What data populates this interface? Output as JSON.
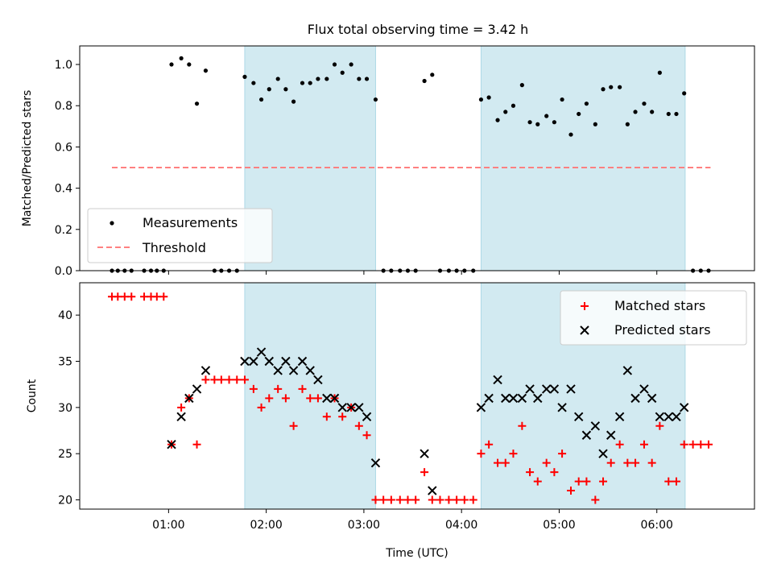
{
  "title": "Flux total observing time = 3.42 h",
  "colors": {
    "shade": "#add8e6",
    "measurement": "#000000",
    "threshold": "#ff8080",
    "matched": "#ff0000",
    "predicted": "#000000"
  },
  "chart_data": [
    {
      "type": "scatter",
      "ylabel": "Matched/Predicted stars",
      "x_unit": "hours UTC",
      "xlim": [
        0.09,
        7.0
      ],
      "ylim": [
        0.0,
        1.09
      ],
      "yticks": [
        "0.0",
        "0.2",
        "0.4",
        "0.6",
        "0.8",
        "1.0"
      ],
      "shaded_intervals": [
        [
          1.78,
          3.12
        ],
        [
          4.2,
          6.29
        ]
      ],
      "legend": {
        "position": "lower left",
        "entries": [
          "Measurements",
          "Threshold"
        ]
      },
      "threshold": {
        "name": "Threshold",
        "y": 0.5,
        "x_range": [
          0.42,
          6.55
        ]
      },
      "series": [
        {
          "name": "Measurements",
          "points": [
            [
              0.42,
              0
            ],
            [
              0.48,
              0
            ],
            [
              0.55,
              0
            ],
            [
              0.62,
              0
            ],
            [
              0.75,
              0
            ],
            [
              0.82,
              0
            ],
            [
              0.88,
              0
            ],
            [
              0.95,
              0
            ],
            [
              1.03,
              1.0
            ],
            [
              1.13,
              1.03
            ],
            [
              1.21,
              1.0
            ],
            [
              1.29,
              0.81
            ],
            [
              1.38,
              0.97
            ],
            [
              1.47,
              0
            ],
            [
              1.54,
              0
            ],
            [
              1.62,
              0
            ],
            [
              1.7,
              0
            ],
            [
              1.78,
              0.94
            ],
            [
              1.87,
              0.91
            ],
            [
              1.95,
              0.83
            ],
            [
              2.03,
              0.88
            ],
            [
              2.12,
              0.93
            ],
            [
              2.2,
              0.88
            ],
            [
              2.28,
              0.82
            ],
            [
              2.37,
              0.91
            ],
            [
              2.45,
              0.91
            ],
            [
              2.53,
              0.93
            ],
            [
              2.62,
              0.93
            ],
            [
              2.7,
              1.0
            ],
            [
              2.78,
              0.96
            ],
            [
              2.87,
              1.0
            ],
            [
              2.95,
              0.93
            ],
            [
              3.03,
              0.93
            ],
            [
              3.12,
              0.83
            ],
            [
              3.2,
              0
            ],
            [
              3.28,
              0
            ],
            [
              3.37,
              0
            ],
            [
              3.45,
              0
            ],
            [
              3.53,
              0
            ],
            [
              3.62,
              0.92
            ],
            [
              3.7,
              0.95
            ],
            [
              3.78,
              0
            ],
            [
              3.87,
              0
            ],
            [
              3.95,
              0
            ],
            [
              4.03,
              0
            ],
            [
              4.12,
              0
            ],
            [
              4.2,
              0.83
            ],
            [
              4.28,
              0.84
            ],
            [
              4.37,
              0.73
            ],
            [
              4.45,
              0.77
            ],
            [
              4.53,
              0.8
            ],
            [
              4.62,
              0.9
            ],
            [
              4.7,
              0.72
            ],
            [
              4.78,
              0.71
            ],
            [
              4.87,
              0.75
            ],
            [
              4.95,
              0.72
            ],
            [
              5.03,
              0.83
            ],
            [
              5.12,
              0.66
            ],
            [
              5.2,
              0.76
            ],
            [
              5.28,
              0.81
            ],
            [
              5.37,
              0.71
            ],
            [
              5.45,
              0.88
            ],
            [
              5.53,
              0.89
            ],
            [
              5.62,
              0.89
            ],
            [
              5.7,
              0.71
            ],
            [
              5.78,
              0.77
            ],
            [
              5.87,
              0.81
            ],
            [
              5.95,
              0.77
            ],
            [
              6.03,
              0.96
            ],
            [
              6.12,
              0.76
            ],
            [
              6.2,
              0.76
            ],
            [
              6.28,
              0.86
            ],
            [
              6.37,
              0
            ],
            [
              6.45,
              0
            ],
            [
              6.53,
              0
            ]
          ]
        }
      ]
    },
    {
      "type": "scatter",
      "xlabel": "Time (UTC)",
      "ylabel": "Count",
      "x_unit": "hours UTC",
      "xlim": [
        0.09,
        7.0
      ],
      "ylim": [
        19.0,
        43.5
      ],
      "yticks": [
        "20",
        "25",
        "30",
        "35",
        "40"
      ],
      "xticks": [
        "01:00",
        "02:00",
        "03:00",
        "04:00",
        "05:00",
        "06:00"
      ],
      "shaded_intervals": [
        [
          1.78,
          3.12
        ],
        [
          4.2,
          6.29
        ]
      ],
      "legend": {
        "position": "upper right",
        "entries": [
          "Matched stars",
          "Predicted stars"
        ]
      },
      "series": [
        {
          "name": "Matched stars",
          "points": [
            [
              0.42,
              42
            ],
            [
              0.48,
              42
            ],
            [
              0.55,
              42
            ],
            [
              0.62,
              42
            ],
            [
              0.75,
              42
            ],
            [
              0.82,
              42
            ],
            [
              0.88,
              42
            ],
            [
              0.95,
              42
            ],
            [
              1.03,
              26
            ],
            [
              1.13,
              30
            ],
            [
              1.21,
              31
            ],
            [
              1.29,
              26
            ],
            [
              1.38,
              33
            ],
            [
              1.47,
              33
            ],
            [
              1.54,
              33
            ],
            [
              1.62,
              33
            ],
            [
              1.7,
              33
            ],
            [
              1.78,
              33
            ],
            [
              1.87,
              32
            ],
            [
              1.95,
              30
            ],
            [
              2.03,
              31
            ],
            [
              2.12,
              32
            ],
            [
              2.2,
              31
            ],
            [
              2.28,
              28
            ],
            [
              2.37,
              32
            ],
            [
              2.45,
              31
            ],
            [
              2.53,
              31
            ],
            [
              2.62,
              29
            ],
            [
              2.7,
              31
            ],
            [
              2.78,
              29
            ],
            [
              2.87,
              30
            ],
            [
              2.95,
              28
            ],
            [
              3.03,
              27
            ],
            [
              3.12,
              20
            ],
            [
              3.2,
              20
            ],
            [
              3.28,
              20
            ],
            [
              3.37,
              20
            ],
            [
              3.45,
              20
            ],
            [
              3.53,
              20
            ],
            [
              3.62,
              23
            ],
            [
              3.7,
              20
            ],
            [
              3.78,
              20
            ],
            [
              3.87,
              20
            ],
            [
              3.95,
              20
            ],
            [
              4.03,
              20
            ],
            [
              4.12,
              20
            ],
            [
              4.2,
              25
            ],
            [
              4.28,
              26
            ],
            [
              4.37,
              24
            ],
            [
              4.45,
              24
            ],
            [
              4.53,
              25
            ],
            [
              4.62,
              28
            ],
            [
              4.7,
              23
            ],
            [
              4.78,
              22
            ],
            [
              4.87,
              24
            ],
            [
              4.95,
              23
            ],
            [
              5.03,
              25
            ],
            [
              5.12,
              21
            ],
            [
              5.2,
              22
            ],
            [
              5.28,
              22
            ],
            [
              5.37,
              20
            ],
            [
              5.45,
              22
            ],
            [
              5.53,
              24
            ],
            [
              5.62,
              26
            ],
            [
              5.7,
              24
            ],
            [
              5.78,
              24
            ],
            [
              5.87,
              26
            ],
            [
              5.95,
              24
            ],
            [
              6.03,
              28
            ],
            [
              6.12,
              22
            ],
            [
              6.2,
              22
            ],
            [
              6.28,
              26
            ],
            [
              6.37,
              26
            ],
            [
              6.45,
              26
            ],
            [
              6.53,
              26
            ]
          ]
        },
        {
          "name": "Predicted stars",
          "points": [
            [
              1.03,
              26
            ],
            [
              1.13,
              29
            ],
            [
              1.21,
              31
            ],
            [
              1.29,
              32
            ],
            [
              1.38,
              34
            ],
            [
              1.78,
              35
            ],
            [
              1.87,
              35
            ],
            [
              1.95,
              36
            ],
            [
              2.03,
              35
            ],
            [
              2.12,
              34
            ],
            [
              2.2,
              35
            ],
            [
              2.28,
              34
            ],
            [
              2.37,
              35
            ],
            [
              2.45,
              34
            ],
            [
              2.53,
              33
            ],
            [
              2.62,
              31
            ],
            [
              2.7,
              31
            ],
            [
              2.78,
              30
            ],
            [
              2.87,
              30
            ],
            [
              2.95,
              30
            ],
            [
              3.03,
              29
            ],
            [
              3.12,
              24
            ],
            [
              3.62,
              25
            ],
            [
              3.7,
              21
            ],
            [
              4.2,
              30
            ],
            [
              4.28,
              31
            ],
            [
              4.37,
              33
            ],
            [
              4.45,
              31
            ],
            [
              4.53,
              31
            ],
            [
              4.62,
              31
            ],
            [
              4.7,
              32
            ],
            [
              4.78,
              31
            ],
            [
              4.87,
              32
            ],
            [
              4.95,
              32
            ],
            [
              5.03,
              30
            ],
            [
              5.12,
              32
            ],
            [
              5.2,
              29
            ],
            [
              5.28,
              27
            ],
            [
              5.37,
              28
            ],
            [
              5.45,
              25
            ],
            [
              5.53,
              27
            ],
            [
              5.62,
              29
            ],
            [
              5.7,
              34
            ],
            [
              5.78,
              31
            ],
            [
              5.87,
              32
            ],
            [
              5.95,
              31
            ],
            [
              6.03,
              29
            ],
            [
              6.12,
              29
            ],
            [
              6.2,
              29
            ],
            [
              6.28,
              30
            ]
          ]
        }
      ]
    }
  ]
}
